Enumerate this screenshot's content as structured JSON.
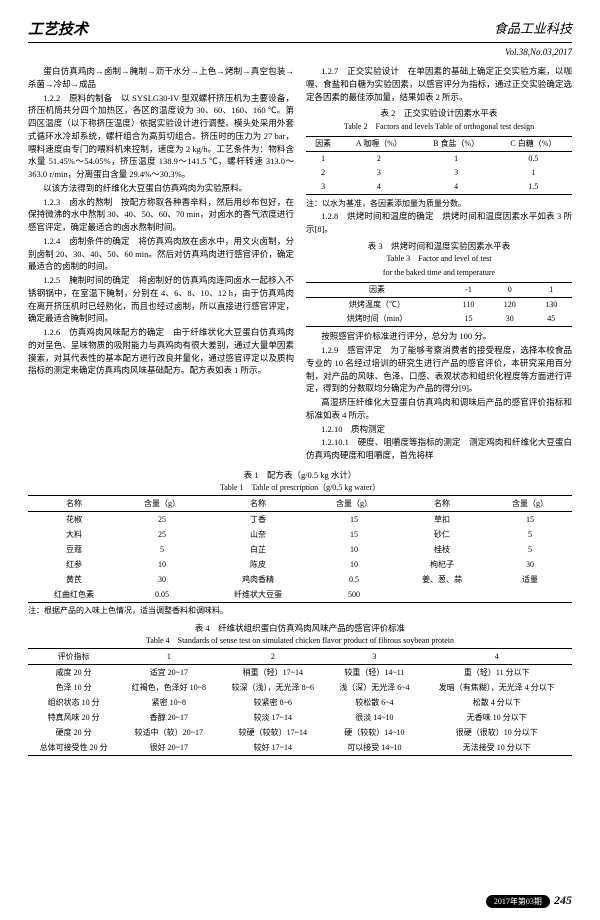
{
  "header": {
    "left": "工艺技术",
    "right": "食品工业科技"
  },
  "vol": "Vol.38,No.03,2017",
  "left_col": {
    "p1": "蛋白仿真鸡肉→卤制→腌制→沥干水分→上色→烤制→真空包装→杀菌→冷却→成品",
    "p2": "1.2.2　原料的制备　以 SYSLG30-IV 型双螺杆挤压机为主要设备，挤压机筒共分四个加热区，各区的温度设为 30、60、160、160 ℃。第四区温度（以下称挤压温度）依据实验设计进行调整。模头处采用外套式循环水冷却系统，螺杆组合为高剪切组合。挤压时的压力为 27 bar，喂料速度由专门的喂料机来控制，速度为 2 kg/h。工艺条件为：物料含水量 51.45%～54.05%，挤压温度 138.9～141.5 ℃，螺杆转速 313.0～363.0 r/min，分离蛋白含量 29.4%～30.3%。",
    "p3": "以该方法得到的纤维化大豆蛋白仿真鸡肉为实验原料。",
    "p4": "1.2.3　卤水的熬制　按配方称取各种香辛料，然后用纱布包好，在保持微沸的水中熬制 30、40、50、60、70 min，对卤水的香气浓度进行感官评定，确定最适合的卤水熬制时间。",
    "p5": "1.2.4　卤制条件的确定　将仿真鸡肉放在卤水中，用文火卤制，分别卤制 20、30、40、50、60 min。然后对仿真鸡肉进行感官评价，确定最适合的卤制的时间。",
    "p6": "1.2.5　腌制时间的确定　将卤制好的仿真鸡肉连同卤水一起移入不锈钢锅中，在室温下腌制，分别在 4、6、8、10、12 h，由于仿真鸡肉在离开挤压机时已经熟化，而且也经过卤制，所以直接进行感官评定，确定最适合腌制时间。",
    "p7": "1.2.6　仿真鸡肉风味配方的确定　由于纤维状化大豆蛋白仿真鸡肉的对呈色、呈味物质的吸附能力与真鸡肉有很大差别，通过大量单因素摸索，对其代表性的基本配方进行改良并量化，通过感官评定以及质构指标的测定来确定仿真鸡肉风味基础配方。配方表如表 1 所示。"
  },
  "right_col": {
    "p1": "1.2.7　正交实验设计　在单因素的基础上确定正交实验方案，以咖喱、食盐和白糖为实验因素，以感官评分为指标，通过正交实验确定选定各因素的最佳添加量，结果如表 2 所示。",
    "t2_title": "表 2　正交实验设计因素水平表",
    "t2_title_en": "Table 2　Factors and levels Table of orthogonal test design",
    "t2": {
      "head": [
        "因素",
        "A 咖喱（%）",
        "B 食盐（%）",
        "C 白糖（%）"
      ],
      "rows": [
        [
          "1",
          "2",
          "1",
          "0.5"
        ],
        [
          "2",
          "3",
          "3",
          "1"
        ],
        [
          "3",
          "4",
          "4",
          "1.5"
        ]
      ]
    },
    "note2": "注：以水为基准，各因素添加量为质量分数。",
    "p2": "1.2.8　烘烤时间和温度的确定　烘烤时间和温度因素水平如表 3 所示[8]。",
    "t3_title": "表 3　烘烤时间和温度实验因素水平表",
    "t3_title_en1": "Table 3　Factor and level of test",
    "t3_title_en2": "for the baked time and temperature",
    "t3": {
      "head": [
        "因素",
        "-1",
        "0",
        "1"
      ],
      "rows": [
        [
          "烘烤温度（℃）",
          "110",
          "120",
          "130"
        ],
        [
          "烘烤时间（min）",
          "15",
          "30",
          "45"
        ]
      ]
    },
    "p3": "按照感官评价标准进行评分，总分为 100 分。",
    "p4": "1.2.9　感官评定　为了能够考察消费者的接受程度，选择本校食品专业的 10 名经过培训的研究生进行产品的感官评价，本研究采用百分制，对产品的风味、色泽、口感、表观状态和组织化程度等方面进行评定，得到的分数取均分确定为产品的得分[9]。",
    "p5": "高湿挤压纤维化大豆蛋白仿真鸡肉和调味后产品的感官评价指标和标准如表 4 所示。",
    "p6": "1.2.10　质构测定",
    "p7": "1.2.10.1　硬度、咀嚼度等指标的测定　测定鸡肉和纤维化大豆蛋白仿真鸡肉硬度和咀嚼度，首先将样"
  },
  "table1": {
    "title": "表 1　配方表（g/0.5 kg 水计）",
    "title_en": "Table 1　Table of prescription（g/0.5 kg water）",
    "head": [
      "名称",
      "含量（g）",
      "名称",
      "含量（g）",
      "名称",
      "含量（g）"
    ],
    "rows": [
      [
        "花椒",
        "25",
        "丁香",
        "15",
        "草扣",
        "15"
      ],
      [
        "大料",
        "25",
        "山奈",
        "15",
        "砂仁",
        "5"
      ],
      [
        "豆蔻",
        "5",
        "白芷",
        "10",
        "桂枝",
        "5"
      ],
      [
        "红参",
        "10",
        "陈皮",
        "10",
        "枸杞子",
        "30"
      ],
      [
        "黄芪",
        "30",
        "鸡肉香精",
        "0.5",
        "姜、葱、蒜",
        "适量"
      ],
      [
        "红曲红色素",
        "0.05",
        "纤维状大豆蛋",
        "500",
        "",
        ""
      ]
    ],
    "note": "注：根据产品的入味上色情况，适当调整香料和调味料。"
  },
  "table4": {
    "title": "表 4　纤维状组织蛋白仿真鸡肉风味产品的感官评价标准",
    "title_en": "Table 4　Standards of sense test on simulated chicken flavor product of fibrous soybean protein",
    "head": [
      "评价指标",
      "1",
      "2",
      "3",
      "4"
    ],
    "rows": [
      [
        "咸度 20 分",
        "适宜 20~17",
        "稍重（轻）17~14",
        "较重（轻）14~11",
        "重（轻）11 分以下"
      ],
      [
        "色泽 10 分",
        "红褐色，色泽好 10~8",
        "较深（浅），无光泽 8~6",
        "浅（深）无光泽 6~4",
        "发暗（有焦糊），无光泽 4 分以下"
      ],
      [
        "组织状态 10 分",
        "紧密 10~8",
        "较紧密 8~6",
        "较松散 6~4",
        "松散 4 分以下"
      ],
      [
        "特真风味 20 分",
        "香醇 20~17",
        "较淡 17~14",
        "很淡 14~10",
        "无香味 10 分以下"
      ],
      [
        "硬度 20 分",
        "较适中（软）20~17",
        "较硬（较软）17~14",
        "硬（较软）14~10",
        "很硬（很软）10 分以下"
      ],
      [
        "总体可接受性 20 分",
        "很好 20~17",
        "较好 17~14",
        "可以接受 14~10",
        "无法接受 10 分以下"
      ]
    ]
  },
  "footer": {
    "badge": "2017年第03期",
    "page": "245"
  }
}
